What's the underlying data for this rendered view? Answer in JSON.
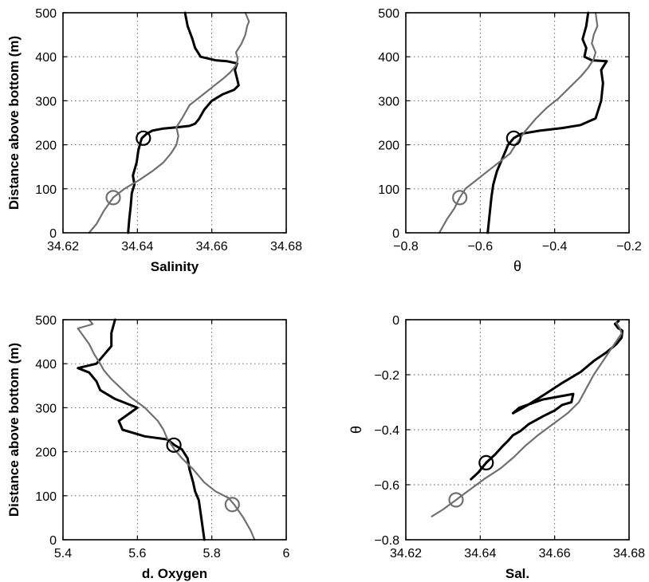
{
  "colors": {
    "profile_a": "#000000",
    "profile_b": "#707070",
    "grid": "#555555"
  },
  "chart_data": [
    {
      "type": "line",
      "xlabel": "Salinity",
      "ylabel": "Distance above bottom (m)",
      "xlim": [
        34.62,
        34.68
      ],
      "ylim": [
        0,
        500
      ],
      "xticks": [
        "34.62",
        "34.64",
        "34.66",
        "34.68"
      ],
      "yticks": [
        "0",
        "100",
        "200",
        "300",
        "400",
        "500"
      ],
      "grid": true,
      "series": [
        {
          "color": "#000000",
          "width": 3,
          "x": [
            34.6375,
            34.6378,
            34.6382,
            34.6385,
            34.6392,
            34.6388,
            34.6398,
            34.6402,
            34.6408,
            34.6412,
            34.6425,
            34.644,
            34.647,
            34.651,
            34.654,
            34.6555,
            34.6565,
            34.658,
            34.66,
            34.663,
            34.666,
            34.6672,
            34.6668,
            34.6662,
            34.6668,
            34.664,
            34.661,
            34.657,
            34.6555,
            34.6548,
            34.6535,
            34.6528
          ],
          "y": [
            0,
            30,
            60,
            90,
            110,
            130,
            160,
            185,
            205,
            215,
            225,
            232,
            237,
            240,
            243,
            248,
            258,
            280,
            300,
            315,
            325,
            335,
            350,
            370,
            385,
            390,
            392,
            400,
            420,
            440,
            470,
            500
          ]
        },
        {
          "color": "#707070",
          "width": 2.2,
          "x": [
            34.627,
            34.629,
            34.631,
            34.6335,
            34.6365,
            34.6405,
            34.644,
            34.647,
            34.649,
            34.6505,
            34.651,
            34.6505,
            34.652,
            34.654,
            34.657,
            34.66,
            34.663,
            34.665,
            34.6665,
            34.667,
            34.6665,
            34.668,
            34.669,
            34.6695,
            34.67,
            34.6695,
            34.669
          ],
          "y": [
            0,
            20,
            50,
            80,
            100,
            120,
            140,
            160,
            180,
            200,
            220,
            240,
            260,
            290,
            310,
            330,
            350,
            365,
            380,
            395,
            410,
            430,
            450,
            470,
            480,
            490,
            500
          ]
        }
      ],
      "markers": [
        {
          "x": 34.6416,
          "y": 215,
          "color": "#000000"
        },
        {
          "x": 34.6335,
          "y": 80,
          "color": "#707070"
        }
      ]
    },
    {
      "type": "line",
      "xlabel": "θ",
      "ylabel": "",
      "xlim": [
        -0.8,
        -0.2
      ],
      "ylim": [
        0,
        500
      ],
      "xticks": [
        "−0.8",
        "−0.6",
        "−0.4",
        "−0.2"
      ],
      "yticks": [
        "0",
        "100",
        "200",
        "300",
        "400",
        "500"
      ],
      "grid": true,
      "series": [
        {
          "color": "#000000",
          "width": 3,
          "x": [
            -0.58,
            -0.575,
            -0.57,
            -0.565,
            -0.555,
            -0.545,
            -0.535,
            -0.525,
            -0.51,
            -0.49,
            -0.44,
            -0.38,
            -0.33,
            -0.29,
            -0.275,
            -0.27,
            -0.275,
            -0.26,
            -0.3,
            -0.32,
            -0.315,
            -0.325,
            -0.315,
            -0.31
          ],
          "y": [
            0,
            40,
            80,
            110,
            140,
            160,
            180,
            200,
            215,
            225,
            232,
            238,
            245,
            260,
            300,
            340,
            370,
            390,
            392,
            400,
            420,
            440,
            470,
            500
          ]
        },
        {
          "color": "#707070",
          "width": 2.2,
          "x": [
            -0.71,
            -0.69,
            -0.67,
            -0.655,
            -0.64,
            -0.61,
            -0.58,
            -0.55,
            -0.52,
            -0.505,
            -0.48,
            -0.45,
            -0.42,
            -0.39,
            -0.36,
            -0.33,
            -0.31,
            -0.295,
            -0.29,
            -0.3,
            -0.295,
            -0.285,
            -0.29
          ],
          "y": [
            0,
            30,
            55,
            80,
            100,
            120,
            140,
            160,
            180,
            200,
            230,
            260,
            285,
            305,
            330,
            355,
            375,
            395,
            410,
            430,
            450,
            470,
            500
          ]
        }
      ],
      "markers": [
        {
          "x": -0.51,
          "y": 215,
          "color": "#000000"
        },
        {
          "x": -0.655,
          "y": 80,
          "color": "#707070"
        }
      ]
    },
    {
      "type": "line",
      "xlabel": "d. Oxygen",
      "ylabel": "Distance above bottom (m)",
      "xlim": [
        5.4,
        6.0
      ],
      "ylim": [
        0,
        500
      ],
      "xticks": [
        "5.4",
        "5.6",
        "5.8",
        "6"
      ],
      "yticks": [
        "0",
        "100",
        "200",
        "300",
        "400",
        "500"
      ],
      "grid": true,
      "series": [
        {
          "color": "#000000",
          "width": 3,
          "x": [
            5.78,
            5.775,
            5.77,
            5.765,
            5.755,
            5.75,
            5.74,
            5.735,
            5.72,
            5.7,
            5.68,
            5.62,
            5.56,
            5.55,
            5.6,
            5.54,
            5.5,
            5.49,
            5.47,
            5.44,
            5.49,
            5.51,
            5.53,
            5.53,
            5.54
          ],
          "y": [
            0,
            30,
            60,
            90,
            110,
            130,
            160,
            185,
            205,
            215,
            228,
            235,
            250,
            270,
            300,
            320,
            340,
            360,
            380,
            390,
            400,
            420,
            440,
            470,
            500
          ]
        },
        {
          "color": "#707070",
          "width": 2.2,
          "x": [
            5.915,
            5.905,
            5.885,
            5.86,
            5.845,
            5.81,
            5.78,
            5.75,
            5.72,
            5.7,
            5.68,
            5.67,
            5.655,
            5.62,
            5.58,
            5.555,
            5.53,
            5.51,
            5.5,
            5.485,
            5.47,
            5.44,
            5.48,
            5.47
          ],
          "y": [
            0,
            20,
            50,
            80,
            95,
            110,
            130,
            160,
            185,
            205,
            230,
            250,
            270,
            300,
            325,
            345,
            365,
            385,
            400,
            420,
            445,
            480,
            490,
            500
          ]
        }
      ],
      "markers": [
        {
          "x": 5.698,
          "y": 215,
          "color": "#000000"
        },
        {
          "x": 5.855,
          "y": 80,
          "color": "#707070"
        }
      ]
    },
    {
      "type": "line",
      "xlabel": "Sal.",
      "ylabel": "θ",
      "xlim": [
        34.62,
        34.68
      ],
      "ylim": [
        -0.8,
        0
      ],
      "xticks": [
        "34.62",
        "34.64",
        "34.66",
        "34.68"
      ],
      "yticks": [
        "−0.8",
        "−0.6",
        "−0.4",
        "−0.2",
        "0"
      ],
      "grid": true,
      "series": [
        {
          "color": "#000000",
          "width": 3,
          "x": [
            34.6375,
            34.6395,
            34.6416,
            34.644,
            34.646,
            34.6475,
            34.6488,
            34.6508,
            34.653,
            34.657,
            34.66,
            34.662,
            34.6645,
            34.665,
            34.6568,
            34.6505,
            34.6488,
            34.6528,
            34.6575,
            34.662,
            34.667,
            34.6705,
            34.6738,
            34.6765,
            34.678,
            34.6782,
            34.677,
            34.6762,
            34.6772
          ],
          "y": [
            -0.58,
            -0.555,
            -0.52,
            -0.49,
            -0.46,
            -0.44,
            -0.42,
            -0.405,
            -0.38,
            -0.35,
            -0.33,
            -0.31,
            -0.3,
            -0.27,
            -0.29,
            -0.32,
            -0.34,
            -0.31,
            -0.27,
            -0.23,
            -0.19,
            -0.15,
            -0.12,
            -0.09,
            -0.065,
            -0.04,
            -0.03,
            -0.015,
            -0.005
          ]
        },
        {
          "color": "#707070",
          "width": 2.2,
          "x": [
            34.627,
            34.63,
            34.6335,
            34.637,
            34.641,
            34.6455,
            34.649,
            34.652,
            34.6555,
            34.6595,
            34.6635,
            34.6665,
            34.6685,
            34.6705,
            34.6725,
            34.6745,
            34.676,
            34.678,
            34.6775,
            34.6765
          ],
          "y": [
            -0.715,
            -0.69,
            -0.655,
            -0.62,
            -0.58,
            -0.54,
            -0.5,
            -0.46,
            -0.42,
            -0.38,
            -0.34,
            -0.3,
            -0.25,
            -0.2,
            -0.16,
            -0.12,
            -0.09,
            -0.05,
            -0.03,
            -0.01
          ]
        }
      ],
      "markers": [
        {
          "x": 34.6416,
          "y": -0.52,
          "color": "#000000"
        },
        {
          "x": 34.6335,
          "y": -0.655,
          "color": "#707070"
        }
      ]
    }
  ]
}
